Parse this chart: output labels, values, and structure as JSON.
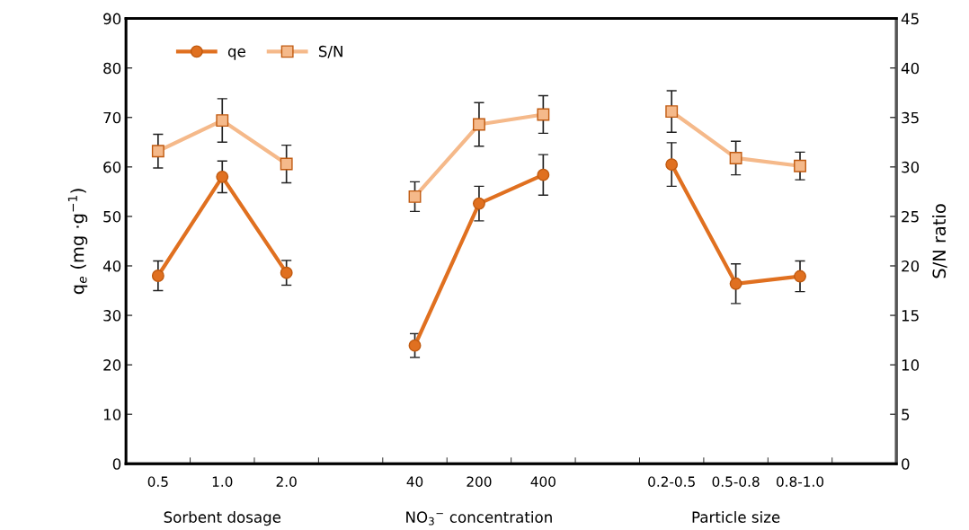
{
  "chart_data": {
    "type": "line",
    "categories": [
      "0.5",
      "1.0",
      "2.0",
      null,
      "40",
      "200",
      "400",
      null,
      "0.2-0.5",
      "0.5-0.8",
      "0.8-1.0",
      null
    ],
    "series": [
      {
        "name": "qe",
        "color": "#e07020",
        "marker": "circle",
        "values": [
          38,
          58,
          38.6,
          null,
          23.9,
          52.6,
          58.4,
          null,
          60.5,
          36.4,
          37.9,
          null
        ],
        "errors": [
          3,
          3.2,
          2.5,
          null,
          2.4,
          3.5,
          4.1,
          null,
          4.4,
          4,
          3.1,
          null
        ]
      },
      {
        "name": "S/N",
        "color": "#f5b98a",
        "marker": "square",
        "axis": "y2",
        "values": [
          31.6,
          34.7,
          30.3,
          null,
          27.0,
          34.3,
          35.3,
          null,
          35.6,
          30.9,
          30.1,
          null
        ],
        "errors": [
          1.7,
          2.2,
          1.9,
          null,
          1.5,
          2.2,
          1.9,
          null,
          2.1,
          1.7,
          1.4,
          null
        ]
      }
    ],
    "ylabel": "q$_{e}$ (mg ·g$^{−1}$)",
    "y2label": "S/N ratio",
    "ylim": [
      0,
      90
    ],
    "yticks": [
      0,
      10,
      20,
      30,
      40,
      50,
      60,
      70,
      80,
      90
    ],
    "y2lim": [
      0,
      45
    ],
    "y2ticks": [
      0,
      5,
      10,
      15,
      20,
      25,
      30,
      35,
      40,
      45
    ],
    "annotations": [
      "Sorbent dosage",
      "NO$_{3}$$^{−}$ concentration",
      "Particle size"
    ],
    "legend": "top left",
    "grid": false
  }
}
